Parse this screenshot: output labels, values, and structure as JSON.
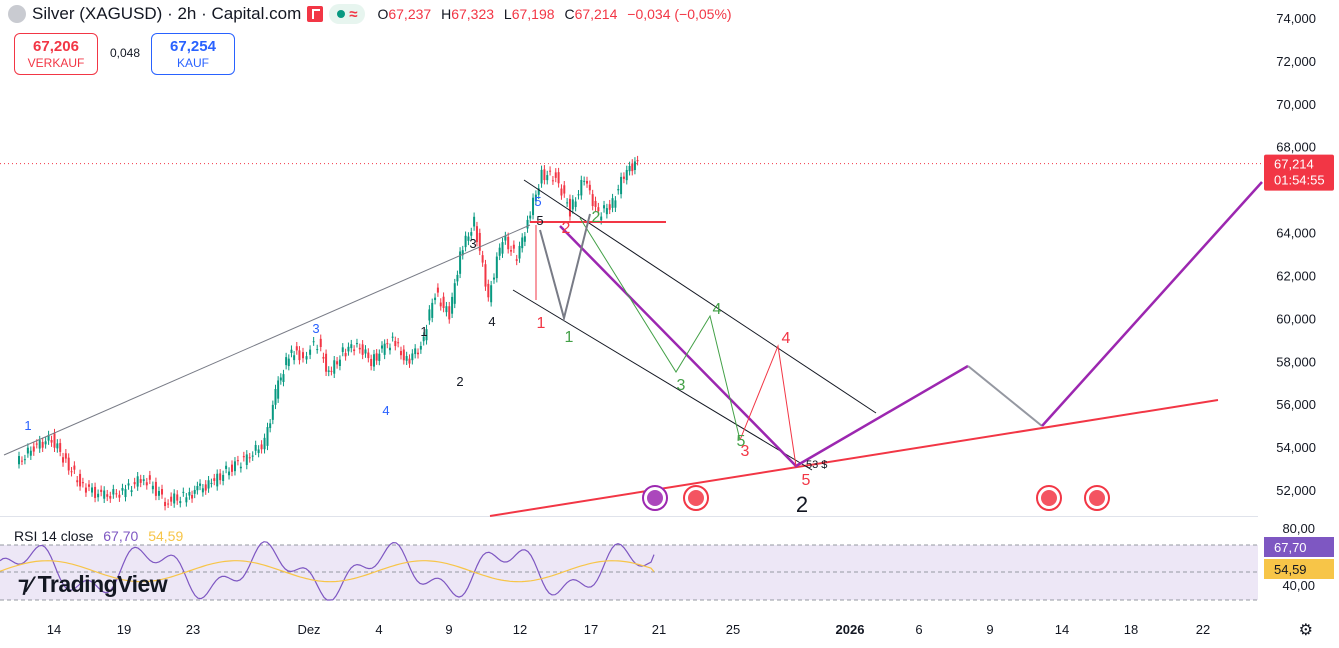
{
  "header": {
    "symbol_title": "Silver (XAGUSD) · 2h · Capital.com",
    "ohlc": [
      {
        "k": "O",
        "v": "67,237"
      },
      {
        "k": "H",
        "v": "67,323"
      },
      {
        "k": "L",
        "v": "67,198"
      },
      {
        "k": "C",
        "v": "67,214"
      }
    ],
    "change": "−0,034 (−0,05%)"
  },
  "trade": {
    "sell_price": "67,206",
    "sell_label": "VERKAUF",
    "spread": "0,048",
    "buy_price": "67,254",
    "buy_label": "KAUF"
  },
  "price_axis": {
    "ticks": [
      "74,000",
      "72,000",
      "70,000",
      "68,000",
      "64,000",
      "62,000",
      "60,000",
      "58,000",
      "56,000",
      "54,000",
      "52,000"
    ],
    "last_price": "67,214",
    "countdown": "01:54:55",
    "colors": {
      "last_price_bg": "#f23645"
    }
  },
  "rsi": {
    "label": "RSI 14 close",
    "value": "67,70",
    "ma_value": "54,59",
    "ticks": [
      "80,00",
      "40,00"
    ],
    "colors": {
      "rsi": "#7e57c2",
      "ma": "#f7c548",
      "band": "#ede7f6"
    }
  },
  "time_axis": {
    "labels": [
      "14",
      "19",
      "23",
      "Dez",
      "4",
      "9",
      "12",
      "17",
      "21",
      "25",
      "2026",
      "6",
      "9",
      "14",
      "18",
      "22"
    ]
  },
  "annotations": {
    "wave_labels": [
      {
        "t": "1",
        "c": "#2962ff"
      },
      {
        "t": "3",
        "c": "#2962ff"
      },
      {
        "t": "4",
        "c": "#2962ff"
      },
      {
        "t": "5",
        "c": "#2962ff"
      },
      {
        "t": "1",
        "c": "#131722"
      },
      {
        "t": "2",
        "c": "#131722"
      },
      {
        "t": "3",
        "c": "#131722"
      },
      {
        "t": "4",
        "c": "#131722"
      },
      {
        "t": "5",
        "c": "#131722"
      },
      {
        "t": "1",
        "c": "#f23645"
      },
      {
        "t": "2",
        "c": "#f23645"
      },
      {
        "t": "3",
        "c": "#f23645"
      },
      {
        "t": "4",
        "c": "#f23645"
      },
      {
        "t": "5",
        "c": "#f23645"
      },
      {
        "t": "1",
        "c": "#43a047"
      },
      {
        "t": "2",
        "c": "#43a047"
      },
      {
        "t": "3",
        "c": "#43a047"
      },
      {
        "t": "4",
        "c": "#43a047"
      },
      {
        "t": "5",
        "c": "#43a047"
      },
      {
        "t": "2",
        "c": "#131722"
      }
    ],
    "target_label": "53 $"
  },
  "branding": {
    "logo_text": "TradingView"
  },
  "icons": {
    "symbol": "silver-coin-icon",
    "flag": "flag-icon",
    "market_open": "market-open-dot-icon",
    "settings": "gear-icon",
    "events": "us-flag-event-icon"
  },
  "chart_data": {
    "type": "line",
    "title": "Silver (XAGUSD) · 2h · Capital.com",
    "ylim": [
      51000,
      74500
    ],
    "x_labels": [
      "14",
      "19",
      "23",
      "Dez",
      "4",
      "9",
      "12",
      "17",
      "21",
      "25",
      "2026",
      "6",
      "9",
      "14",
      "18",
      "22"
    ],
    "series": [
      {
        "name": "XAGUSD",
        "x": [
          0,
          0.5,
          1,
          1.4,
          1.8,
          2.4,
          3,
          3.6,
          4.2,
          4.8,
          5.1,
          5.5,
          6,
          6.5,
          7,
          7.3,
          7.6,
          7.9,
          8.1,
          8.3,
          8.5,
          8.8,
          9.2,
          9.6,
          10,
          10.3,
          10.6,
          11,
          11.4,
          11.8,
          12.2,
          12.5,
          12.9,
          13.3,
          13.7,
          14.1,
          14.4,
          14.8,
          15.2,
          15.6,
          16,
          16.4,
          16.8,
          17.2,
          17.5
        ],
        "values": [
          53200,
          54000,
          54400,
          53300,
          52300,
          51700,
          51900,
          52600,
          51500,
          51700,
          52000,
          52300,
          53000,
          53500,
          54200,
          56500,
          58000,
          58600,
          58000,
          58700,
          58800,
          57400,
          58400,
          58800,
          58000,
          58500,
          59000,
          58000,
          58700,
          61200,
          60100,
          63000,
          64500,
          61000,
          63800,
          62800,
          64500,
          66700,
          66600,
          65000,
          66500,
          64800,
          65400,
          67000,
          67214
        ]
      }
    ],
    "rsi": {
      "last": 67.7,
      "ma_last": 54.59,
      "range": [
        20,
        90
      ]
    }
  }
}
